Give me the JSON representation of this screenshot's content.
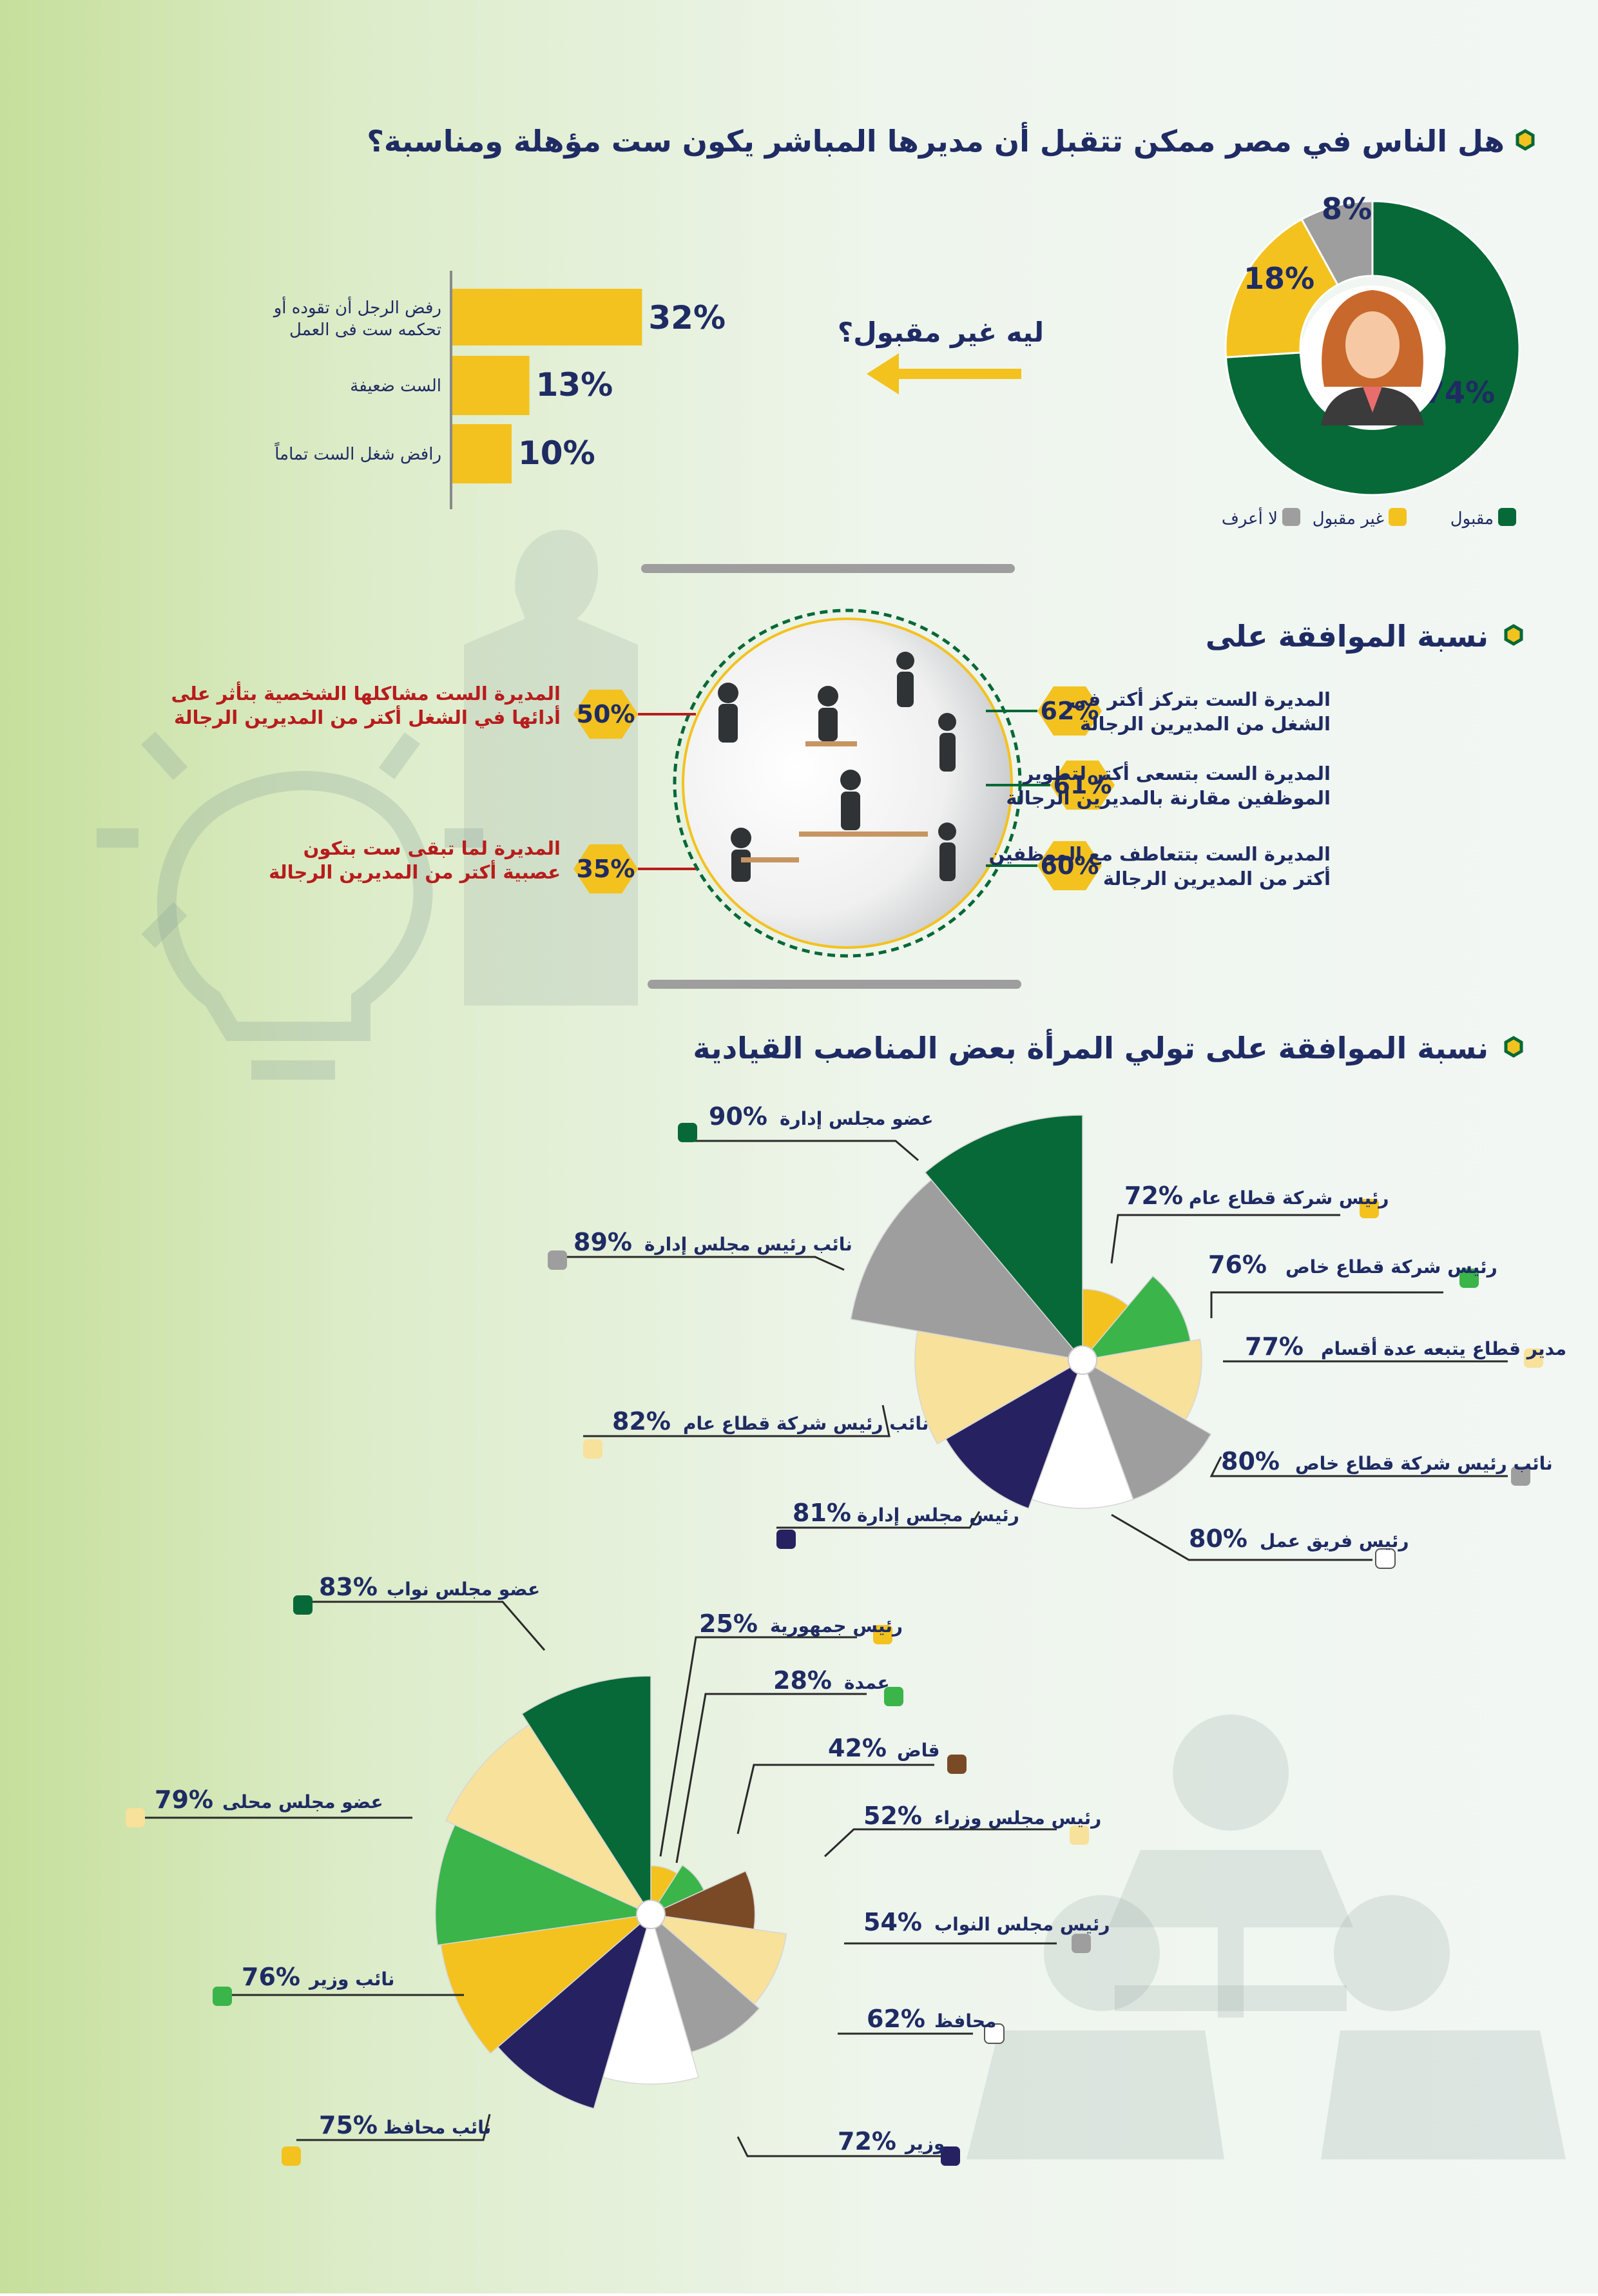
{
  "colors": {
    "dark_green": "#066937",
    "green": "#3bb44a",
    "yellow": "#f3c21f",
    "light_yellow": "#f8e19a",
    "gray": "#9e9e9e",
    "navy": "#262261",
    "white": "#ffffff",
    "brown": "#7a4a27",
    "heading": "#1f2b63",
    "red_text": "#b71c1c"
  },
  "section1": {
    "title": "هل الناس في مصر ممكن تتقبل أن مديرها المباشر يكون ست مؤهلة ومناسبة؟",
    "why_label": "ليه غير مقبول؟",
    "legend": [
      {
        "label": "مقبول",
        "color": "#066937"
      },
      {
        "label": "غير مقبول",
        "color": "#f3c21f"
      },
      {
        "label": "لا أعرف",
        "color": "#9e9e9e"
      }
    ]
  },
  "section2": {
    "title": "نسبة الموافقة على",
    "right_items": [
      {
        "value": "62%",
        "line1": "المديرة الست بتركز أكتر فى",
        "line2": "الشغل من المديرين الرجالة"
      },
      {
        "value": "61%",
        "line1": "المديرة الست بتسعى أكتر لتطوير",
        "line2": "الموظفين مقارنة بالمديرين الرجالة"
      },
      {
        "value": "60%",
        "line1": "المديرة الست بتتعاطف مع الموظفين",
        "line2": "أكتر من المديرين الرجالة"
      }
    ],
    "left_items": [
      {
        "value": "50%",
        "line1": "المديرة الست مشاكلها الشخصية بتأثر على",
        "line2": "أدائها في الشغل أكتر من المديرين الرجالة"
      },
      {
        "value": "35%",
        "line1": "المديرة لما تبقى ست بتكون",
        "line2": "عصبية أكتر من المديرين الرجالة"
      }
    ]
  },
  "section3": {
    "title": "نسبة الموافقة على تولي المرأة بعض المناصب القيادية"
  },
  "chart_data": [
    {
      "type": "pie",
      "variant": "donut",
      "slices": [
        {
          "label": "مقبول",
          "value": 74,
          "color": "#066937",
          "display": "74%"
        },
        {
          "label": "غير مقبول",
          "value": 18,
          "color": "#f3c21f",
          "display": "18%"
        },
        {
          "label": "لا أعرف",
          "value": 8,
          "color": "#9e9e9e",
          "display": "8%"
        }
      ]
    },
    {
      "type": "bar",
      "orientation": "horizontal",
      "categories": [
        "رفض الرجل أن تقوده أو تحكمه ست فى العمل",
        "الست ضعيفة",
        "رافض شغل الست تماماً"
      ],
      "values": [
        32,
        13,
        10
      ],
      "display": [
        "32%",
        "13%",
        "10%"
      ],
      "color": "#f3c21f"
    },
    {
      "type": "pie",
      "variant": "polar-area",
      "slices": [
        {
          "label": "رئيس شركة قطاع عام",
          "value": 72,
          "color": "#f3c21f"
        },
        {
          "label": "رئيس شركة قطاع خاص",
          "value": 76,
          "color": "#3bb44a"
        },
        {
          "label": "مدير قطاع يتبعه عدة أقسام",
          "value": 77,
          "color": "#f8e19a"
        },
        {
          "label": "نائب رئيس شركة قطاع خاص",
          "value": 80,
          "color": "#9e9e9e"
        },
        {
          "label": "رئيس فريق عمل",
          "value": 80,
          "color": "#ffffff"
        },
        {
          "label": "رئيس مجلس إدارة",
          "value": 81,
          "color": "#262261"
        },
        {
          "label": "نائب رئيس شركة قطاع عام",
          "value": 82,
          "color": "#f8e19a"
        },
        {
          "label": "نائب رئيس مجلس إدارة",
          "value": 89,
          "color": "#9e9e9e"
        },
        {
          "label": "عضو مجلس إدارة",
          "value": 90,
          "color": "#066937"
        }
      ]
    },
    {
      "type": "pie",
      "variant": "polar-area",
      "slices": [
        {
          "label": "رئيس جمهورية",
          "value": 25,
          "color": "#f3c21f"
        },
        {
          "label": "عمدة",
          "value": 28,
          "color": "#3bb44a"
        },
        {
          "label": "قاض",
          "value": 42,
          "color": "#7a4a27"
        },
        {
          "label": "رئيس مجلس وزراء",
          "value": 52,
          "color": "#f8e19a"
        },
        {
          "label": "رئيس مجلس النواب",
          "value": 54,
          "color": "#9e9e9e"
        },
        {
          "label": "محافظ",
          "value": 62,
          "color": "#ffffff"
        },
        {
          "label": "وزير",
          "value": 72,
          "color": "#262261"
        },
        {
          "label": "نائب محافظ",
          "value": 75,
          "color": "#f3c21f"
        },
        {
          "label": "نائب وزير",
          "value": 76,
          "color": "#3bb44a"
        },
        {
          "label": "عضو مجلس محلى",
          "value": 79,
          "color": "#f8e19a"
        },
        {
          "label": "عضو مجلس نواب",
          "value": 83,
          "color": "#066937"
        }
      ]
    }
  ]
}
